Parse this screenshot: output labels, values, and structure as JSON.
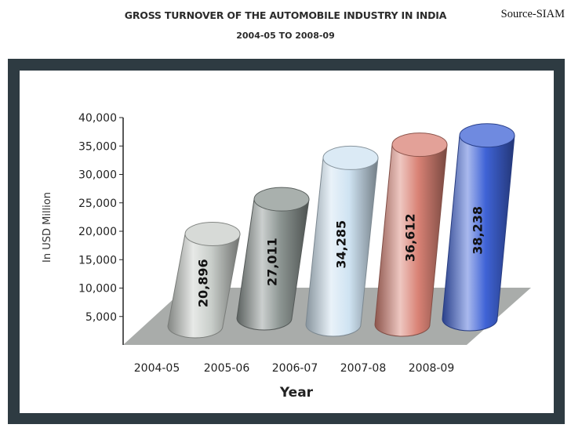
{
  "source_label": "Source-SIAM",
  "chart_data": {
    "type": "bar",
    "title": "GROSS TURNOVER OF THE AUTOMOBILE INDUSTRY IN INDIA",
    "subtitle": "2004-05 TO 2008-09",
    "xlabel": "Year",
    "ylabel": "In USD Million",
    "categories": [
      "2004-05",
      "2005-06",
      "2006-07",
      "2007-08",
      "2008-09"
    ],
    "values": [
      20896,
      27011,
      34285,
      36612,
      38238
    ],
    "value_labels": [
      "20,896",
      "27,011",
      "34,285",
      "36,612",
      "38,238"
    ],
    "yticks": [
      "5,000",
      "10,000",
      "15,000",
      "20,000",
      "25,000",
      "30,000",
      "35,000",
      "40,000"
    ],
    "ytick_values": [
      5000,
      10000,
      15000,
      20000,
      25000,
      30000,
      35000,
      40000
    ],
    "ylim": [
      0,
      40000
    ],
    "bar_colors": [
      "#c9ceca",
      "#8c9592",
      "#cfe3f2",
      "#d98275",
      "#3f63d6"
    ],
    "frame_color": "#2e3b42",
    "floor_color": "#a9acaa",
    "grid": false,
    "legend": "none"
  }
}
